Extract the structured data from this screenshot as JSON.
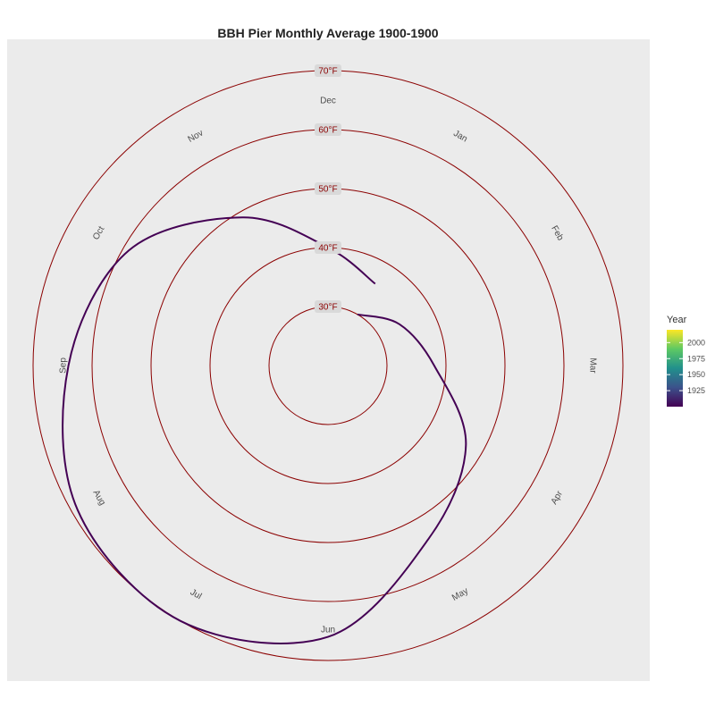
{
  "chart_data": {
    "type": "line",
    "coordinate_system": "polar",
    "title": "BBH Pier Monthly Average 1900-1900",
    "months": [
      "Jan",
      "Feb",
      "Mar",
      "Apr",
      "May",
      "Jun",
      "Jul",
      "Aug",
      "Sep",
      "Oct",
      "Nov",
      "Dec"
    ],
    "radial_scale": {
      "unit": "°F",
      "min": 20,
      "max": 80
    },
    "rings": [
      {
        "value": 30,
        "label": "30°F"
      },
      {
        "value": 40,
        "label": "40°F"
      },
      {
        "value": 50,
        "label": "50°F"
      },
      {
        "value": 60,
        "label": "60°F"
      },
      {
        "value": 70,
        "label": "70°F"
      }
    ],
    "series": [
      {
        "year": 1900,
        "x": [
          "Jan",
          "Feb",
          "Mar",
          "Apr",
          "May",
          "Jun",
          "Jul",
          "Aug",
          "Sep",
          "Oct",
          "Nov",
          "Dec",
          "Jan"
        ],
        "y": [
          30,
          34,
          38,
          47,
          54,
          66,
          70,
          69,
          64,
          59,
          49,
          40,
          36
        ]
      }
    ],
    "legend": {
      "title": "Year",
      "position": "right",
      "type": "colorbar",
      "scale": "viridis",
      "range": [
        1900,
        2020
      ],
      "ticks": [
        1925,
        1950,
        1975,
        2000
      ]
    },
    "panel_background": "#ebebeb",
    "ring_color": "#8b0000",
    "label_box_color": "#d9d9d9",
    "line_color": "#440154",
    "grid": false
  }
}
